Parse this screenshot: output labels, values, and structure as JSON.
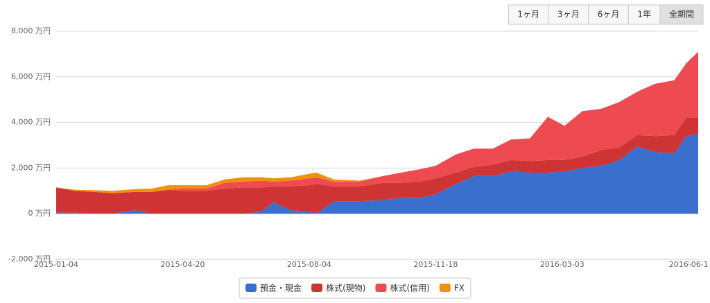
{
  "range_selector": {
    "buttons": [
      "1ヶ月",
      "3ヶ月",
      "6ヶ月",
      "1年",
      "全期間"
    ],
    "selected": 4
  },
  "chart_data": {
    "type": "stacked_area",
    "x": [
      "2015-01-04",
      "2015-01-20",
      "2015-02-05",
      "2015-02-20",
      "2015-03-10",
      "2015-03-25",
      "2015-04-08",
      "2015-04-20",
      "2015-05-10",
      "2015-05-25",
      "2015-06-10",
      "2015-06-25",
      "2015-07-05",
      "2015-07-20",
      "2015-08-04",
      "2015-08-10",
      "2015-08-25",
      "2015-09-15",
      "2015-10-05",
      "2015-10-20",
      "2015-11-05",
      "2015-11-18",
      "2015-12-05",
      "2015-12-20",
      "2016-01-05",
      "2016-01-20",
      "2016-02-05",
      "2016-02-20",
      "2016-03-05",
      "2016-03-20",
      "2016-04-05",
      "2016-04-20",
      "2016-05-05",
      "2016-05-20",
      "2016-06-05",
      "2016-06-15",
      "2016-06-25"
    ],
    "series": [
      {
        "name": "預金・現金",
        "color": "#3a6fce",
        "values": [
          50,
          50,
          0,
          0,
          150,
          0,
          0,
          0,
          0,
          0,
          0,
          100,
          500,
          150,
          100,
          0,
          550,
          550,
          600,
          700,
          700,
          850,
          1300,
          1650,
          1650,
          1850,
          1800,
          1800,
          1850,
          2000,
          2100,
          2350,
          2950,
          2700,
          2650,
          3400,
          3500
        ]
      },
      {
        "name": "株式(現物)",
        "color": "#cf3434",
        "values": [
          1100,
          950,
          950,
          900,
          800,
          950,
          1050,
          1000,
          1000,
          1100,
          1150,
          1050,
          700,
          1050,
          1150,
          1300,
          650,
          650,
          750,
          650,
          700,
          700,
          500,
          400,
          500,
          500,
          500,
          550,
          500,
          500,
          700,
          550,
          500,
          700,
          800,
          800,
          700
        ]
      },
      {
        "name": "株式(信用)",
        "color": "#ee4a52",
        "values": [
          0,
          0,
          0,
          0,
          0,
          0,
          0,
          100,
          100,
          250,
          250,
          300,
          200,
          250,
          300,
          300,
          200,
          200,
          300,
          450,
          550,
          550,
          800,
          800,
          700,
          900,
          1000,
          1900,
          1500,
          2000,
          1800,
          2000,
          1900,
          2300,
          2400,
          2400,
          2900
        ]
      },
      {
        "name": "FX",
        "color": "#f0900f",
        "values": [
          0,
          50,
          80,
          100,
          120,
          150,
          200,
          150,
          150,
          150,
          200,
          150,
          150,
          150,
          200,
          200,
          100,
          50,
          0,
          0,
          0,
          0,
          0,
          0,
          0,
          0,
          0,
          0,
          0,
          0,
          0,
          0,
          0,
          0,
          0,
          0,
          0
        ]
      }
    ],
    "xlim": [
      "2015-01-04",
      "2016-06-25"
    ],
    "xticks": [
      "2015-01-04",
      "2015-04-20",
      "2015-08-04",
      "2015-11-18",
      "2016-03-03",
      {
        "value": "2016-06-17",
        "label": "2016-06-1"
      }
    ],
    "ylim": [
      -2000,
      8000
    ],
    "yticks": [
      {
        "value": -2000,
        "label": "-2,000 万円"
      },
      {
        "value": 0,
        "label": "0 万円"
      },
      {
        "value": 2000,
        "label": "2,000 万円"
      },
      {
        "value": 4000,
        "label": "4,000 万円"
      },
      {
        "value": 6000,
        "label": "6,000 万円"
      },
      {
        "value": 8000,
        "label": "8,000 万円"
      }
    ],
    "grid": true
  }
}
